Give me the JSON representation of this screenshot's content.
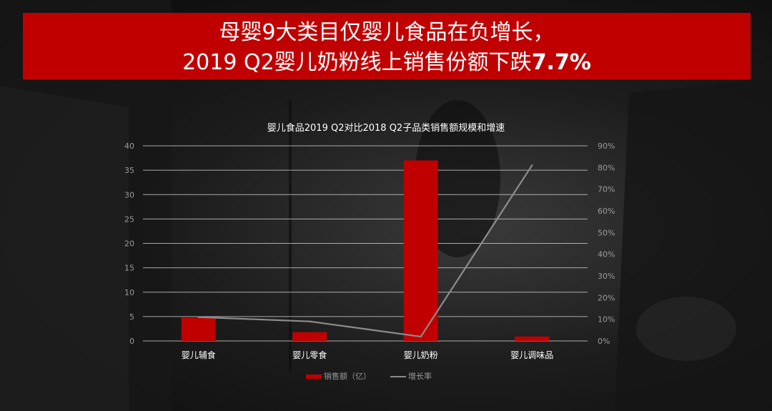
{
  "header": {
    "line1": "母婴9大类目仅婴儿食品在负增长，",
    "line2_prefix": "2019 Q2婴儿奶粉线上销售份额下跌",
    "line2_highlight": "7.7%"
  },
  "colors": {
    "banner": "#c00000",
    "bar": "#c00000",
    "line": "#8c8c8c",
    "text": "#ffffff",
    "axis_text": "#9a9a9a"
  },
  "chart_data": {
    "type": "bar",
    "title": "婴儿食品2019 Q2对比2018 Q2子品类销售额规模和增速",
    "categories": [
      "婴儿辅食",
      "婴儿零食",
      "婴儿奶粉",
      "婴儿调味品"
    ],
    "series": [
      {
        "name": "销售额（亿）",
        "type": "bar",
        "axis": "left",
        "values": [
          4.8,
          1.8,
          37,
          0.9
        ]
      },
      {
        "name": "增长率",
        "type": "line",
        "axis": "right",
        "values": [
          0.11,
          0.09,
          0.02,
          0.81
        ]
      }
    ],
    "ylim_left": [
      0,
      40
    ],
    "yticks_left": [
      "0",
      "5",
      "10",
      "15",
      "20",
      "25",
      "30",
      "35",
      "40"
    ],
    "ylim_right": [
      0,
      0.9
    ],
    "yticks_right": [
      "0%",
      "10%",
      "20%",
      "30%",
      "40%",
      "50%",
      "60%",
      "70%",
      "80%",
      "90%"
    ],
    "grid": true,
    "legend_position": "bottom"
  }
}
